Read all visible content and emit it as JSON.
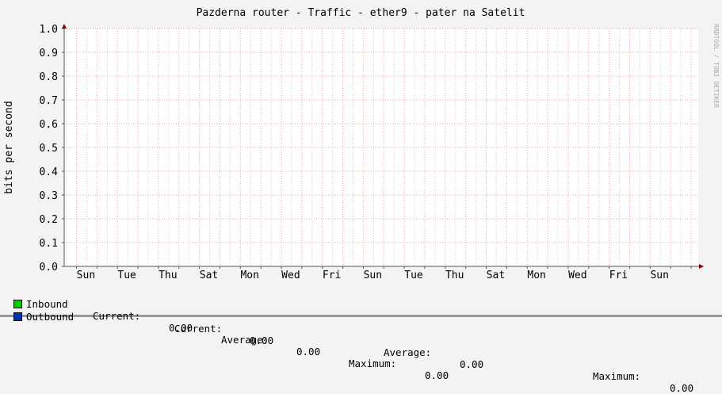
{
  "chart_data": {
    "type": "line",
    "title": "Pazderna router  - Traffic - ether9 - pater na Satelit",
    "ylabel": "bits per second",
    "xlabel": "",
    "ylim": [
      0,
      1.0
    ],
    "y_ticks": [
      "0.0",
      "0.1",
      "0.2",
      "0.3",
      "0.4",
      "0.5",
      "0.6",
      "0.7",
      "0.8",
      "0.9",
      "1.0"
    ],
    "x_ticks": [
      "Sun",
      "Tue",
      "Thu",
      "Sat",
      "Mon",
      "Wed",
      "Fri",
      "Sun",
      "Tue",
      "Thu",
      "Sat",
      "Mon",
      "Wed",
      "Fri",
      "Sun"
    ],
    "grid": true,
    "watermark": "RRDTOOL / TOBI OETIKER",
    "series": [
      {
        "name": "Inbound",
        "color": "#00cc00",
        "values": [
          0,
          0,
          0,
          0,
          0,
          0,
          0,
          0,
          0,
          0,
          0,
          0,
          0,
          0,
          0
        ]
      },
      {
        "name": "Outbound",
        "color": "#0033aa",
        "values": [
          0,
          0,
          0,
          0,
          0,
          0,
          0,
          0,
          0,
          0,
          0,
          0,
          0,
          0,
          0
        ]
      }
    ]
  },
  "legend": {
    "inbound": {
      "label": "Inbound",
      "current_label": "Current:",
      "current": "0.00",
      "average_label": "Average:",
      "average": "0.00",
      "maximum_label": "Maximum:",
      "maximum": "0.00"
    },
    "outbound": {
      "label": "Outbound",
      "current_label": "Current:",
      "current": "0.00",
      "average_label": "Average:",
      "average": "0.00",
      "maximum_label": "Maximum:",
      "maximum": "0.00"
    }
  }
}
